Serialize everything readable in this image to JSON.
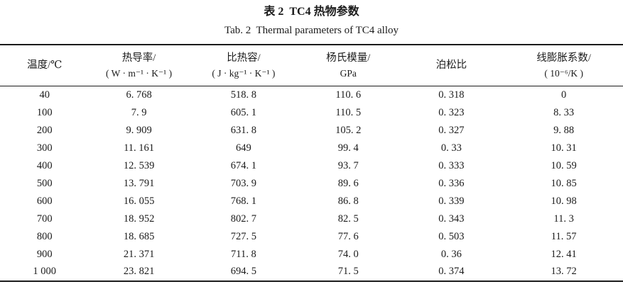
{
  "page": {
    "title_cn": "表 2  TC4 热物参数",
    "title_en": "Tab. 2  Thermal parameters of TC4 alloy"
  },
  "colors": {
    "background": "#ffffff",
    "ink": "#1b1b1b"
  },
  "table": {
    "columns": [
      {
        "line1": "温度/℃",
        "line2": ""
      },
      {
        "line1": "热导率/",
        "line2": "( W · m⁻¹ · K⁻¹ )"
      },
      {
        "line1": "比热容/",
        "line2": "( J · kg⁻¹ · K⁻¹ )"
      },
      {
        "line1": "杨氏模量/",
        "line2": "GPa"
      },
      {
        "line1": "泊松比",
        "line2": ""
      },
      {
        "line1": "线膨胀系数/",
        "line2": "( 10⁻⁶/K )"
      }
    ],
    "rows": [
      [
        "40",
        "6. 768",
        "518. 8",
        "110. 6",
        "0. 318",
        "0"
      ],
      [
        "100",
        "7. 9",
        "605. 1",
        "110. 5",
        "0. 323",
        "8. 33"
      ],
      [
        "200",
        "9. 909",
        "631. 8",
        "105. 2",
        "0. 327",
        "9. 88"
      ],
      [
        "300",
        "11. 161",
        "649",
        "99. 4",
        "0. 33",
        "10. 31"
      ],
      [
        "400",
        "12. 539",
        "674. 1",
        "93. 7",
        "0. 333",
        "10. 59"
      ],
      [
        "500",
        "13. 791",
        "703. 9",
        "89. 6",
        "0. 336",
        "10. 85"
      ],
      [
        "600",
        "16. 055",
        "768. 1",
        "86. 8",
        "0. 339",
        "10. 98"
      ],
      [
        "700",
        "18. 952",
        "802. 7",
        "82. 5",
        "0. 343",
        "11. 3"
      ],
      [
        "800",
        "18. 685",
        "727. 5",
        "77. 6",
        "0. 503",
        "11. 57"
      ],
      [
        "900",
        "21. 371",
        "711. 8",
        "74. 0",
        "0. 36",
        "12. 41"
      ],
      [
        "1 000",
        "23. 821",
        "694. 5",
        "71. 5",
        "0. 374",
        "13. 72"
      ]
    ]
  }
}
